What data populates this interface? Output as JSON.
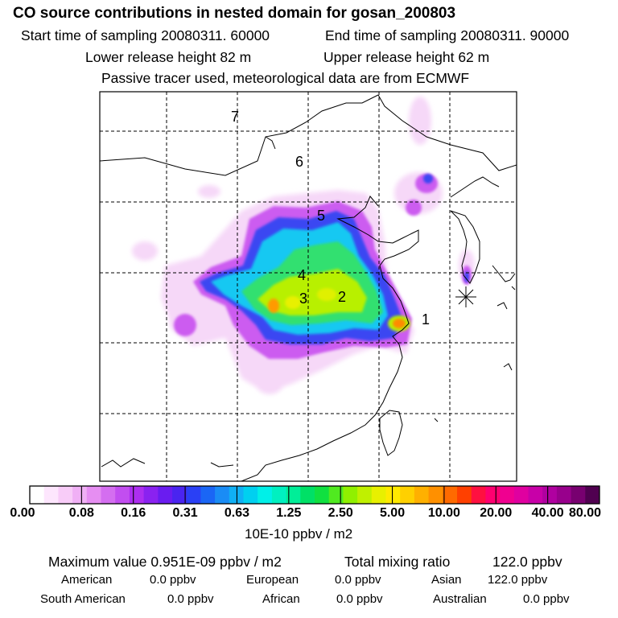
{
  "title": "CO  source contributions in nested domain for gosan_200803",
  "header": {
    "start_time": "Start time of sampling 20080311. 60000",
    "end_time": "End time of sampling 20080311. 90000",
    "lower_release": "Lower release height   82 m",
    "upper_release": "Upper release height   62 m",
    "tracer_note": "Passive tracer used, meteorological data are from ECMWF"
  },
  "map": {
    "region_labels": [
      "1",
      "2",
      "3",
      "4",
      "5",
      "6",
      "7"
    ],
    "receptor_icon": "asterisk-receptor-icon"
  },
  "colorbar": {
    "colors": [
      "#ffffff",
      "#fde6fd",
      "#f8ccf8",
      "#f0b0f5",
      "#e68ef2",
      "#d46ef0",
      "#c24ef0",
      "#ad2ef0",
      "#8a22f0",
      "#6a1cf0",
      "#4a24f0",
      "#2a40f5",
      "#1a66f5",
      "#1a8cf5",
      "#10b0f5",
      "#00d0f0",
      "#00f0e8",
      "#00f0c0",
      "#00ee98",
      "#00e066",
      "#10e040",
      "#50ea20",
      "#90f000",
      "#c0f000",
      "#e8f000",
      "#ffea00",
      "#ffd000",
      "#ffb000",
      "#ff9000",
      "#ff6a00",
      "#ff4000",
      "#ff1040",
      "#ff0070",
      "#f00090",
      "#e000a0",
      "#c800a8",
      "#b000a0",
      "#98008c",
      "#780070",
      "#500050"
    ],
    "tick_labels": [
      "0.00",
      "0.08",
      "0.16",
      "0.31",
      "0.63",
      "1.25",
      "2.50",
      "5.00",
      "10.00",
      "20.00",
      "40.00",
      "80.00"
    ],
    "unit": "10E-10 ppbv / m2"
  },
  "stats": {
    "max_label": "Maximum value  0.951E-09 ppbv / m2",
    "total_label": "Total mixing ratio",
    "total_value": "122.0 ppbv",
    "regions": [
      {
        "name": "American",
        "value": "0.0 ppbv"
      },
      {
        "name": "European",
        "value": "0.0 ppbv"
      },
      {
        "name": "Asian",
        "value": "122.0 ppbv"
      },
      {
        "name": "South American",
        "value": "0.0 ppbv"
      },
      {
        "name": "African",
        "value": "0.0 ppbv"
      },
      {
        "name": "Australian",
        "value": "0.0 ppbv"
      }
    ]
  }
}
